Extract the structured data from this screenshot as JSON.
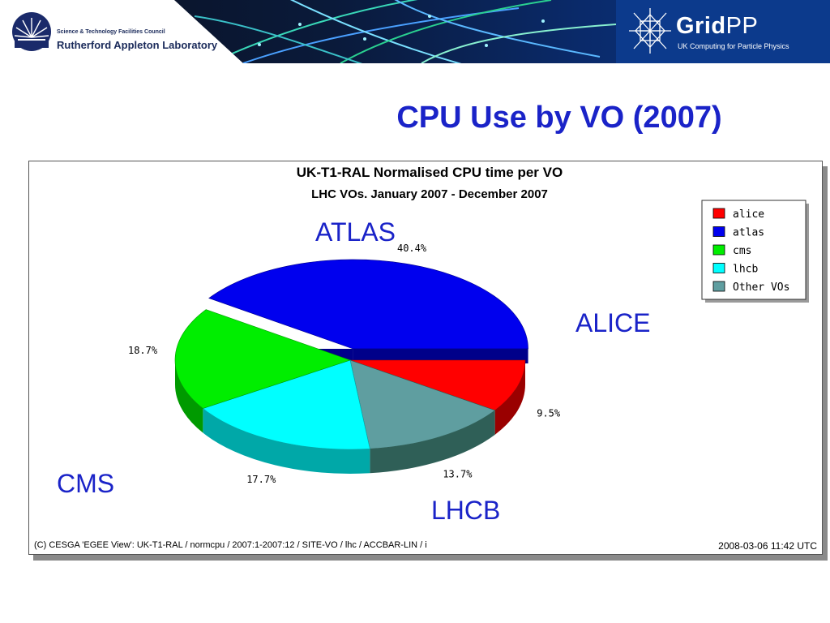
{
  "header": {
    "stfc_text": "Science & Technology Facilities Council",
    "ral_text": "Rutherford Appleton Laboratory",
    "gridpp_bold": "Grid",
    "gridpp_rest": "PP",
    "gridpp_subtitle": "UK Computing for Particle Physics"
  },
  "slide": {
    "title": "CPU Use by VO (2007)"
  },
  "annotations": {
    "atlas": "ATLAS",
    "alice": "ALICE",
    "cms": "CMS",
    "lhcb": "LHCB"
  },
  "chart_data": {
    "type": "pie",
    "title": "UK-T1-RAL Normalised CPU time per VO",
    "subtitle": "LHC VOs. January 2007 - December 2007",
    "slices": [
      {
        "name": "alice",
        "value": 9.5,
        "label": "9.5%",
        "color": "#ff0000",
        "side": "#9a0000"
      },
      {
        "name": "other VOs",
        "value": 13.7,
        "label": "13.7%",
        "color": "#5f9ea0",
        "side": "#2f5f57"
      },
      {
        "name": "lhcb",
        "value": 17.7,
        "label": "17.7%",
        "color": "#00ffff",
        "side": "#00a8a8"
      },
      {
        "name": "cms",
        "value": 18.7,
        "label": "18.7%",
        "color": "#00ee00",
        "side": "#009a00"
      },
      {
        "name": "atlas",
        "value": 40.4,
        "label": "40.4%",
        "color": "#0000ee",
        "side": "#00008a",
        "exploded": true
      }
    ],
    "legend": [
      {
        "label": "alice",
        "color": "#ff0000"
      },
      {
        "label": "atlas",
        "color": "#0000ee"
      },
      {
        "label": "cms",
        "color": "#00ee00"
      },
      {
        "label": "lhcb",
        "color": "#00ffff"
      },
      {
        "label": "Other VOs",
        "color": "#5f9ea0"
      }
    ],
    "legend_position": "top-right",
    "footer_left": "(C) CESGA 'EGEE View': UK-T1-RAL / normcpu / 2007:1-2007:12 / SITE-VO / lhc / ACCBAR-LIN / i",
    "footer_right": "2008-03-06 11:42 UTC"
  }
}
